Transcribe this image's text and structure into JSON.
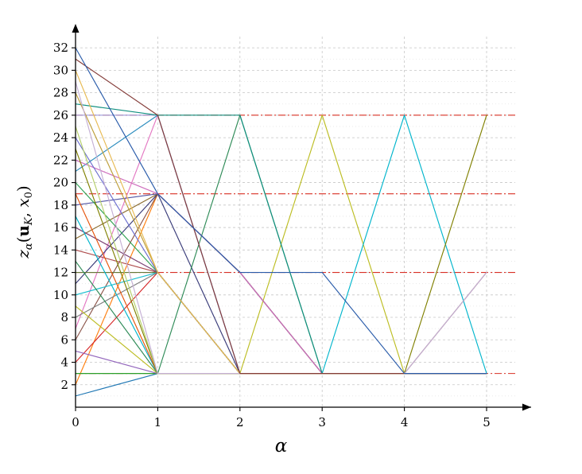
{
  "figure": {
    "title": "",
    "xlabel": "α",
    "ylabel_plain": "z_α(u_K, x_0)"
  },
  "chart_data": {
    "type": "line",
    "x": [
      0,
      1,
      2,
      3,
      4,
      5
    ],
    "xlabel": "α",
    "ylabel": "z_α(u_K, x_0)",
    "ylabel_parts": [
      {
        "t": "z",
        "style": "i"
      },
      {
        "t": "α",
        "style": "sub"
      },
      {
        "t": "(",
        "style": "n"
      },
      {
        "t": "u",
        "style": "b"
      },
      {
        "t": "K",
        "style": "subi"
      },
      {
        "t": ",",
        "style": "n"
      },
      {
        "t": " ",
        "style": "n"
      },
      {
        "t": "x",
        "style": "i"
      },
      {
        "t": "0",
        "style": "sub"
      },
      {
        "t": ")",
        "style": "n"
      }
    ],
    "xlim": [
      0,
      5
    ],
    "ylim": [
      0,
      33
    ],
    "x_ticks": [
      0,
      1,
      2,
      3,
      4,
      5
    ],
    "y_ticks": [
      2,
      4,
      6,
      8,
      10,
      12,
      14,
      16,
      18,
      20,
      22,
      24,
      26,
      28,
      30,
      32
    ],
    "grid": {
      "major_color": "#c6c6c6",
      "minor_color": "#e3e3e3"
    },
    "reference_lines": {
      "color": "#d93025",
      "y": [
        3,
        12,
        19,
        26
      ]
    },
    "legend": "none",
    "series": [
      {
        "color": "#1f77b4",
        "values": [
          1,
          3,
          3,
          3,
          3,
          3
        ]
      },
      {
        "color": "#ff7f0e",
        "values": [
          2,
          19,
          12,
          3,
          3,
          3
        ]
      },
      {
        "color": "#2ca02c",
        "values": [
          3,
          3,
          3,
          3,
          3,
          3
        ]
      },
      {
        "color": "#d62728",
        "values": [
          4,
          12,
          3,
          3,
          3,
          3
        ]
      },
      {
        "color": "#9467bd",
        "values": [
          5,
          3,
          3,
          3,
          3,
          3
        ]
      },
      {
        "color": "#8c564b",
        "values": [
          6,
          19,
          12,
          3,
          3,
          12
        ]
      },
      {
        "color": "#e377c2",
        "values": [
          7,
          26,
          3,
          3,
          3,
          3
        ]
      },
      {
        "color": "#7f7f7f",
        "values": [
          8,
          12,
          3,
          3,
          3,
          3
        ]
      },
      {
        "color": "#bcbd22",
        "values": [
          9,
          3,
          3,
          26,
          3,
          3
        ]
      },
      {
        "color": "#17becf",
        "values": [
          10,
          12,
          3,
          3,
          3,
          3
        ]
      },
      {
        "color": "#393b79",
        "values": [
          11,
          19,
          3,
          3,
          3,
          3
        ]
      },
      {
        "color": "#637939",
        "values": [
          12,
          12,
          3,
          3,
          3,
          3
        ]
      },
      {
        "color": "#2e8b57",
        "values": [
          13,
          3,
          26,
          3,
          3,
          3
        ]
      },
      {
        "color": "#ad494a",
        "values": [
          14,
          12,
          3,
          3,
          3,
          3
        ]
      },
      {
        "color": "#8c6d31",
        "values": [
          15,
          19,
          12,
          3,
          3,
          3
        ]
      },
      {
        "color": "#7b4173",
        "values": [
          16,
          12,
          3,
          3,
          3,
          3
        ]
      },
      {
        "color": "#00b5cc",
        "values": [
          17,
          3,
          3,
          3,
          26,
          3
        ]
      },
      {
        "color": "#5254a3",
        "values": [
          18,
          19,
          12,
          3,
          3,
          3
        ]
      },
      {
        "color": "#e6550d",
        "values": [
          19,
          3,
          3,
          3,
          3,
          3
        ]
      },
      {
        "color": "#31a354",
        "values": [
          20,
          12,
          3,
          3,
          3,
          3
        ]
      },
      {
        "color": "#2b8cbe",
        "values": [
          21,
          26,
          3,
          3,
          3,
          3
        ]
      },
      {
        "color": "#ce6dbd",
        "values": [
          22,
          19,
          12,
          3,
          3,
          3
        ]
      },
      {
        "color": "#808000",
        "values": [
          23,
          3,
          3,
          3,
          3,
          26
        ]
      },
      {
        "color": "#6b6ecf",
        "values": [
          24,
          12,
          3,
          3,
          3,
          3
        ]
      },
      {
        "color": "#b5cf6b",
        "values": [
          25,
          3,
          3,
          3,
          3,
          3
        ]
      },
      {
        "color": "#9c9ede",
        "values": [
          26,
          26,
          3,
          3,
          3,
          3
        ]
      },
      {
        "color": "#0f8f7f",
        "values": [
          27,
          26,
          26,
          3,
          3,
          3
        ]
      },
      {
        "color": "#bd9e39",
        "values": [
          28,
          12,
          3,
          3,
          3,
          3
        ]
      },
      {
        "color": "#c5b0d5",
        "values": [
          29,
          3,
          3,
          3,
          3,
          12
        ]
      },
      {
        "color": "#e7ba52",
        "values": [
          30,
          12,
          3,
          3,
          3,
          3
        ]
      },
      {
        "color": "#843c39",
        "values": [
          31,
          26,
          3,
          3,
          3,
          3
        ]
      },
      {
        "color": "#2a5caa",
        "values": [
          32,
          19,
          12,
          12,
          3,
          3
        ]
      }
    ]
  }
}
